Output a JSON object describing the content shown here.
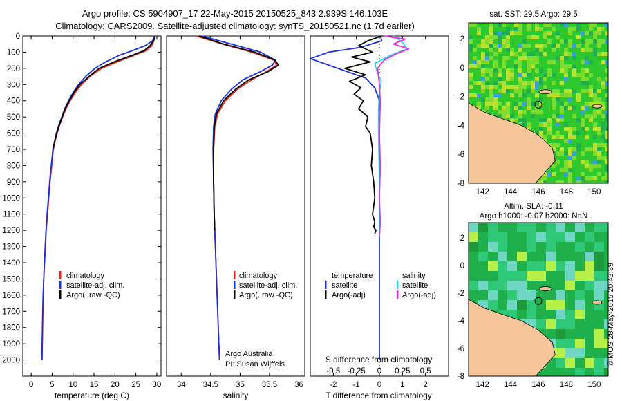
{
  "figure": {
    "title_line1": "Argo profile: CS 5904907_17 22-May-2015 20150525_843 2.939S 146.103E",
    "title_line2": "Climatology: CARS2009. Satellite-adjusted climatology: synTS_20150521.nc (1.7d earlier)",
    "footer_stamp": "©IMOS 28-May-2015 20:43:39",
    "colors": {
      "clim": "#e8261c",
      "sat": "#1d2fd6",
      "argo": "#000000",
      "sat_sal": "#22d6e6",
      "argo_sal": "#ee2de8"
    }
  },
  "chart_data": [
    {
      "id": "temperature",
      "type": "line",
      "xlabel": "temperature (deg C)",
      "ylabel": "",
      "xlim": [
        -2,
        31
      ],
      "ylim": [
        2100,
        0
      ],
      "xticks": [
        0,
        5,
        10,
        15,
        20,
        25,
        30
      ],
      "yticks": [
        0,
        100,
        200,
        300,
        400,
        500,
        600,
        700,
        800,
        900,
        1000,
        1100,
        1200,
        1300,
        1400,
        1500,
        1600,
        1700,
        1800,
        1900,
        2000
      ],
      "legend": [
        "climatology",
        "satellite-adj. clim.",
        "Argo(..raw -QC)"
      ],
      "legend_placement": "lower-center",
      "series": [
        {
          "name": "climatology",
          "color": "#e8261c",
          "x": [
            29.5,
            29.3,
            28.8,
            27.5,
            24.5,
            20.5,
            16.8,
            14.0,
            12.0,
            10.5,
            9.3,
            8.3,
            7.5,
            6.8,
            6.2,
            5.7,
            5.3,
            4.9,
            4.5,
            4.2,
            3.9,
            3.6,
            3.4,
            3.2,
            3.0,
            2.9,
            2.8,
            2.7,
            2.6
          ],
          "y": [
            0,
            30,
            60,
            90,
            120,
            160,
            200,
            250,
            300,
            350,
            400,
            450,
            500,
            550,
            600,
            650,
            700,
            800,
            900,
            1000,
            1100,
            1200,
            1300,
            1400,
            1500,
            1600,
            1700,
            1850,
            2000
          ]
        },
        {
          "name": "satellite-adj. clim.",
          "color": "#1d2fd6",
          "x": [
            29.5,
            29.0,
            27.2,
            24.2,
            21.0,
            17.8,
            15.2,
            13.0,
            11.3,
            10.0,
            8.9,
            8.0,
            7.3,
            6.6,
            6.0,
            5.6,
            5.2,
            4.8,
            4.4,
            4.1,
            3.8,
            3.55,
            3.35,
            3.15,
            3.0,
            2.85,
            2.75,
            2.65,
            2.55
          ],
          "y": [
            0,
            30,
            60,
            90,
            120,
            160,
            200,
            250,
            300,
            350,
            400,
            450,
            500,
            550,
            600,
            650,
            700,
            800,
            900,
            1000,
            1100,
            1200,
            1300,
            1400,
            1500,
            1600,
            1700,
            1850,
            2000
          ]
        },
        {
          "name": "Argo(..raw -QC)",
          "color": "#000000",
          "x": [
            29.6,
            29.2,
            28.4,
            27.0,
            24.0,
            19.8,
            16.2,
            13.8,
            11.6,
            10.2,
            9.1,
            8.1,
            7.4,
            6.7,
            6.1,
            5.6,
            5.2
          ],
          "y": [
            0,
            30,
            60,
            90,
            120,
            160,
            200,
            250,
            300,
            350,
            400,
            450,
            500,
            550,
            600,
            650,
            700
          ]
        }
      ]
    },
    {
      "id": "salinity",
      "type": "line",
      "xlabel": "salinity",
      "ylabel": "",
      "xlim": [
        33.75,
        36.1
      ],
      "ylim": [
        2100,
        0
      ],
      "xticks": [
        34,
        34.5,
        35,
        35.5,
        36
      ],
      "xticklabels": [
        "34",
        "34.5",
        "35",
        "35.5",
        "36"
      ],
      "legend": [
        "climatology",
        "satellite-adj. clim.",
        "Argo(..raw -QC)"
      ],
      "legend_placement": "lower-right",
      "annotation": [
        "Argo Australia",
        "PI: Susan Wijffels"
      ],
      "series": [
        {
          "name": "climatology",
          "color": "#e8261c",
          "x": [
            34.25,
            34.7,
            35.2,
            35.58,
            35.62,
            35.45,
            35.2,
            34.95,
            34.75,
            34.62,
            34.57,
            34.55,
            34.55,
            34.56,
            34.58,
            34.6,
            34.62,
            34.64,
            34.65
          ],
          "y": [
            0,
            50,
            100,
            150,
            180,
            220,
            270,
            330,
            400,
            480,
            560,
            700,
            900,
            1100,
            1300,
            1500,
            1700,
            1900,
            2000
          ]
        },
        {
          "name": "satellite-adj. clim.",
          "color": "#1d2fd6",
          "x": [
            34.35,
            34.85,
            35.35,
            35.6,
            35.55,
            35.35,
            35.05,
            34.85,
            34.68,
            34.58,
            34.55,
            34.54,
            34.55,
            34.56,
            34.58,
            34.6,
            34.62,
            34.64,
            34.65
          ],
          "y": [
            0,
            50,
            100,
            150,
            180,
            220,
            270,
            330,
            400,
            480,
            560,
            700,
            900,
            1100,
            1300,
            1500,
            1700,
            1900,
            2000
          ]
        },
        {
          "name": "Argo(..raw -QC)",
          "color": "#000000",
          "x": [
            34.3,
            34.72,
            35.25,
            35.6,
            35.65,
            35.48,
            35.15,
            34.92,
            34.72,
            34.6,
            34.56,
            34.55,
            34.55,
            34.56,
            34.57
          ],
          "y": [
            0,
            50,
            100,
            150,
            180,
            220,
            270,
            330,
            400,
            480,
            560,
            700,
            900,
            1100,
            1200
          ]
        }
      ]
    },
    {
      "id": "difference",
      "type": "line",
      "xlabel": "T difference from climatology",
      "x2label": "S difference from climatology",
      "xlim": [
        -3,
        3
      ],
      "ylim": [
        2100,
        0
      ],
      "xticks": [
        -2,
        -1,
        0,
        1,
        2
      ],
      "x2ticks": [
        -0.5,
        -0.25,
        0,
        0.25,
        0.5
      ],
      "zero_line": true,
      "legend": [
        "temperature",
        "satellite",
        "Argo(-adj)",
        "salinity",
        "satellite",
        "Argo(-adj)"
      ],
      "legend_placement": "lower-center",
      "series": [
        {
          "name": "satellite",
          "group": "temperature",
          "color": "#1d2fd6",
          "x": [
            0.05,
            0.1,
            -0.8,
            -2.2,
            -3.0,
            -1.8,
            -0.6,
            -0.2,
            0.0,
            0.0,
            0.0,
            0.0,
            0.0
          ],
          "y": [
            0,
            30,
            70,
            100,
            140,
            200,
            260,
            320,
            400,
            600,
            900,
            1200,
            2000
          ]
        },
        {
          "name": "Argo(-adj)",
          "group": "temperature",
          "color": "#000000",
          "x": [
            0.1,
            -0.5,
            -0.9,
            -0.3,
            -1.2,
            -0.4,
            -1.5,
            -0.6,
            -1.3,
            -0.8,
            -1.1,
            -0.7,
            -0.9,
            -0.5,
            -0.6,
            -0.4,
            -0.3,
            -0.35,
            -0.25,
            -0.2,
            -0.3,
            -0.2,
            -0.25,
            -0.15,
            -0.2
          ],
          "y": [
            0,
            30,
            60,
            100,
            130,
            160,
            200,
            240,
            280,
            320,
            360,
            400,
            450,
            500,
            560,
            600,
            700,
            800,
            900,
            1000,
            1100,
            1150,
            1180,
            1200,
            1220
          ]
        },
        {
          "name": "satellite",
          "group": "salinity",
          "color": "#22d6e6",
          "x": [
            0.15,
            0.25,
            0.3,
            0.12,
            -0.05,
            -0.02,
            0.02,
            0.0,
            -0.01,
            -0.01,
            0.0,
            0.0,
            0.0
          ],
          "y": [
            0,
            40,
            80,
            120,
            170,
            230,
            280,
            350,
            450,
            600,
            900,
            1200,
            1240
          ]
        },
        {
          "name": "Argo(-adj)",
          "group": "salinity",
          "color": "#ee2de8",
          "x": [
            0.05,
            0.28,
            0.15,
            0.32,
            0.18,
            0.05,
            -0.02,
            0.0,
            0.01,
            0.0,
            0.01,
            0.0,
            0.01,
            0.0
          ],
          "y": [
            0,
            20,
            50,
            80,
            110,
            150,
            200,
            300,
            400,
            600,
            800,
            1000,
            1150,
            1240
          ]
        }
      ]
    }
  ],
  "maps": [
    {
      "id": "sst-map",
      "title": "sat. SST: 29.5 Argo: 29.5",
      "xticks": [
        "142",
        "144",
        "146",
        "148",
        "150"
      ],
      "yticks": [
        "2",
        "0",
        "-2",
        "-4",
        "-6",
        "-8"
      ],
      "land_color": "#f7c59a",
      "field_colors": [
        "#2dc82d",
        "#7bdc2e",
        "#b8e02c",
        "#1fae52",
        "#3aa0d8"
      ]
    },
    {
      "id": "sla-map",
      "title_line1": "Altim. SLA: -0.11",
      "title_line2": "Argo h1000: -0.07 h2000: NaN",
      "xticks": [
        "142",
        "144",
        "146",
        "148",
        "150"
      ],
      "yticks": [
        "2",
        "0",
        "-2",
        "-4",
        "-6",
        "-8"
      ],
      "land_color": "#f7c59a",
      "field_colors": [
        "#1fb04c",
        "#2ec877",
        "#6fd6c4",
        "#b8f04a",
        "#1e9a3c"
      ]
    }
  ]
}
